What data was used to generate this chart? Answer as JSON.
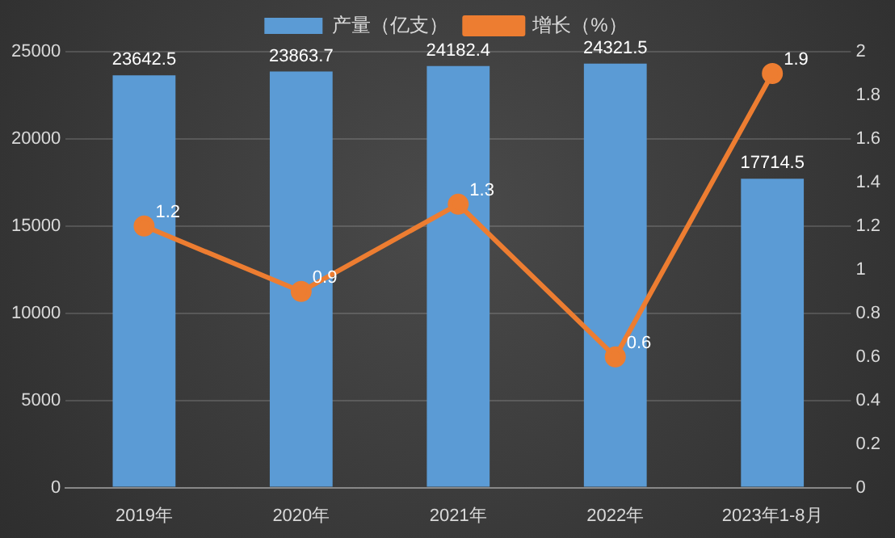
{
  "chart_data": {
    "type": "bar",
    "categories": [
      "2019年",
      "2020年",
      "2021年",
      "2022年",
      "2023年1-8月"
    ],
    "series": [
      {
        "name": "产量（亿支）",
        "color": "#5b9bd5",
        "values": [
          23642.5,
          23863.7,
          24182.4,
          24321.5,
          17714.5
        ]
      },
      {
        "name": "增长（%）",
        "type": "line",
        "axis": "y2",
        "color": "#ed7d31",
        "values": [
          1.2,
          0.9,
          1.3,
          0.6,
          1.9
        ]
      }
    ],
    "ylim": [
      0,
      25000
    ],
    "yticks": [
      0,
      5000,
      10000,
      15000,
      20000,
      25000
    ],
    "y2lim": [
      0,
      2
    ],
    "y2ticks": [
      0,
      0.2,
      0.4,
      0.6,
      0.8,
      1,
      1.2,
      1.4,
      1.6,
      1.8,
      2
    ],
    "grid": "y",
    "legend": "top",
    "marker": "circle",
    "data_labels": true
  }
}
